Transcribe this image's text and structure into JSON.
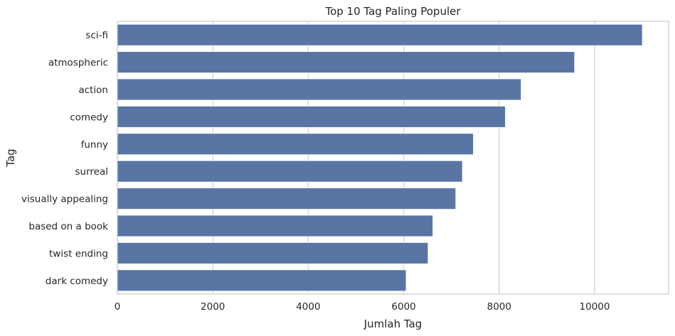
{
  "chart_data": {
    "type": "bar",
    "orientation": "horizontal",
    "title": "Top 10 Tag Paling Populer",
    "xlabel": "Jumlah Tag",
    "ylabel": "Tag",
    "xlim": [
      0,
      11550
    ],
    "xticks": [
      0,
      2000,
      4000,
      6000,
      8000,
      10000
    ],
    "grid": "vertical",
    "bar_color": "#5875a4",
    "categories": [
      "sci-fi",
      "atmospheric",
      "action",
      "comedy",
      "funny",
      "surreal",
      "visually appealing",
      "based on a book",
      "twist ending",
      "dark comedy"
    ],
    "values": [
      11000,
      9580,
      8460,
      8130,
      7460,
      7230,
      7090,
      6610,
      6510,
      6050
    ]
  }
}
